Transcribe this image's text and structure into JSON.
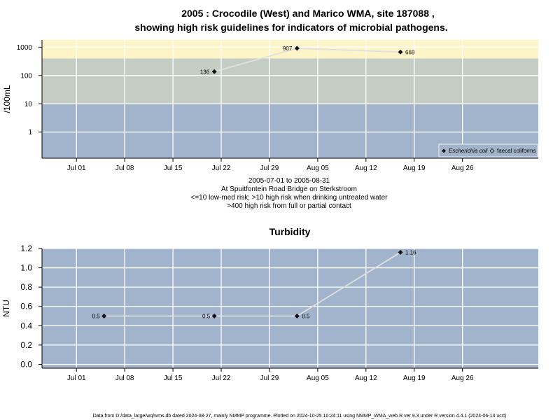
{
  "chart_data": [
    {
      "type": "line",
      "title": [
        "2005 : Crocodile (West) and Marico WMA, site 187088 ,",
        "showing high risk guidelines for indicators of microbial pathogens."
      ],
      "ylabel": "/100mL",
      "y_scale": "log",
      "ylim": [
        0.12,
        1800
      ],
      "y_ticks": [
        "1",
        "10",
        "100",
        "1000"
      ],
      "y_tick_values": [
        1,
        10,
        100,
        1000
      ],
      "xlim": [
        "2005-06-26",
        "2005-09-06"
      ],
      "x_ticks": [
        "Jul 01",
        "Jul 08",
        "Jul 15",
        "Jul 22",
        "Jul 29",
        "Aug 05",
        "Aug 12",
        "Aug 19",
        "Aug 26"
      ],
      "x_tick_dates": [
        "2005-07-01",
        "2005-07-08",
        "2005-07-15",
        "2005-07-22",
        "2005-07-29",
        "2005-08-05",
        "2005-08-12",
        "2005-08-19",
        "2005-08-26"
      ],
      "bands": [
        {
          "from": 0.12,
          "to": 10,
          "color": "#a2b4cb"
        },
        {
          "from": 10,
          "to": 400,
          "color": "#c4cdc3"
        },
        {
          "from": 400,
          "to": 1800,
          "color": "#fdf5c8"
        }
      ],
      "series": [
        {
          "name": "Escherichia coli",
          "points": [
            {
              "x": "2005-07-21",
              "y": 136,
              "label": "136",
              "label_side": "left"
            },
            {
              "x": "2005-08-02",
              "y": 907,
              "label": "907",
              "label_side": "left"
            },
            {
              "x": "2005-08-17",
              "y": 669,
              "label": "669",
              "label_side": "right"
            }
          ]
        },
        {
          "name": "faecal coliforms",
          "points": []
        }
      ],
      "legend_position": "bottom-right",
      "caption": [
        "2005-07-01 to 2005-08-31",
        "At Spuitfontein Road Bridge on Sterkstroom",
        "<=10 low-med risk; >10 high risk when drinking untreated water",
        ">400 high risk from full or partial contact"
      ]
    },
    {
      "type": "line",
      "title": "Turbidity",
      "ylabel": "NTU",
      "ylim": [
        -0.04,
        1.2
      ],
      "y_ticks": [
        "0.0",
        "0.2",
        "0.4",
        "0.6",
        "0.8",
        "1.0",
        "1.2"
      ],
      "y_tick_values": [
        0,
        0.2,
        0.4,
        0.6,
        0.8,
        1.0,
        1.2
      ],
      "xlim": [
        "2005-06-26",
        "2005-09-06"
      ],
      "x_ticks": [
        "Jul 01",
        "Jul 08",
        "Jul 15",
        "Jul 22",
        "Jul 29",
        "Aug 05",
        "Aug 12",
        "Aug 19",
        "Aug 26"
      ],
      "x_tick_dates": [
        "2005-07-01",
        "2005-07-08",
        "2005-07-15",
        "2005-07-22",
        "2005-07-29",
        "2005-08-05",
        "2005-08-12",
        "2005-08-19",
        "2005-08-26"
      ],
      "series": [
        {
          "name": "Turbidity",
          "points": [
            {
              "x": "2005-07-05",
              "y": 0.5,
              "label": "0.5",
              "label_side": "left"
            },
            {
              "x": "2005-07-21",
              "y": 0.5,
              "label": "0.5",
              "label_side": "left"
            },
            {
              "x": "2005-08-02",
              "y": 0.5,
              "label": "0.5",
              "label_side": "right"
            },
            {
              "x": "2005-08-17",
              "y": 1.16,
              "label": "1.16",
              "label_side": "right"
            }
          ]
        }
      ]
    }
  ],
  "colors": {
    "plot_bg": "#a2b4cb",
    "grid": "#ffffff",
    "line": "#dcdcdc",
    "marker": "#000000"
  },
  "footer": "Data from D:/data_large/wq/wms.db dated 2024-08-27, mainly NMMP programme. Plotted on 2024-10-25 10:24:11 using NMMP_WMA_web.R ver 9.3 under R version 4.4.1 (2024-06-14 ucrt)"
}
